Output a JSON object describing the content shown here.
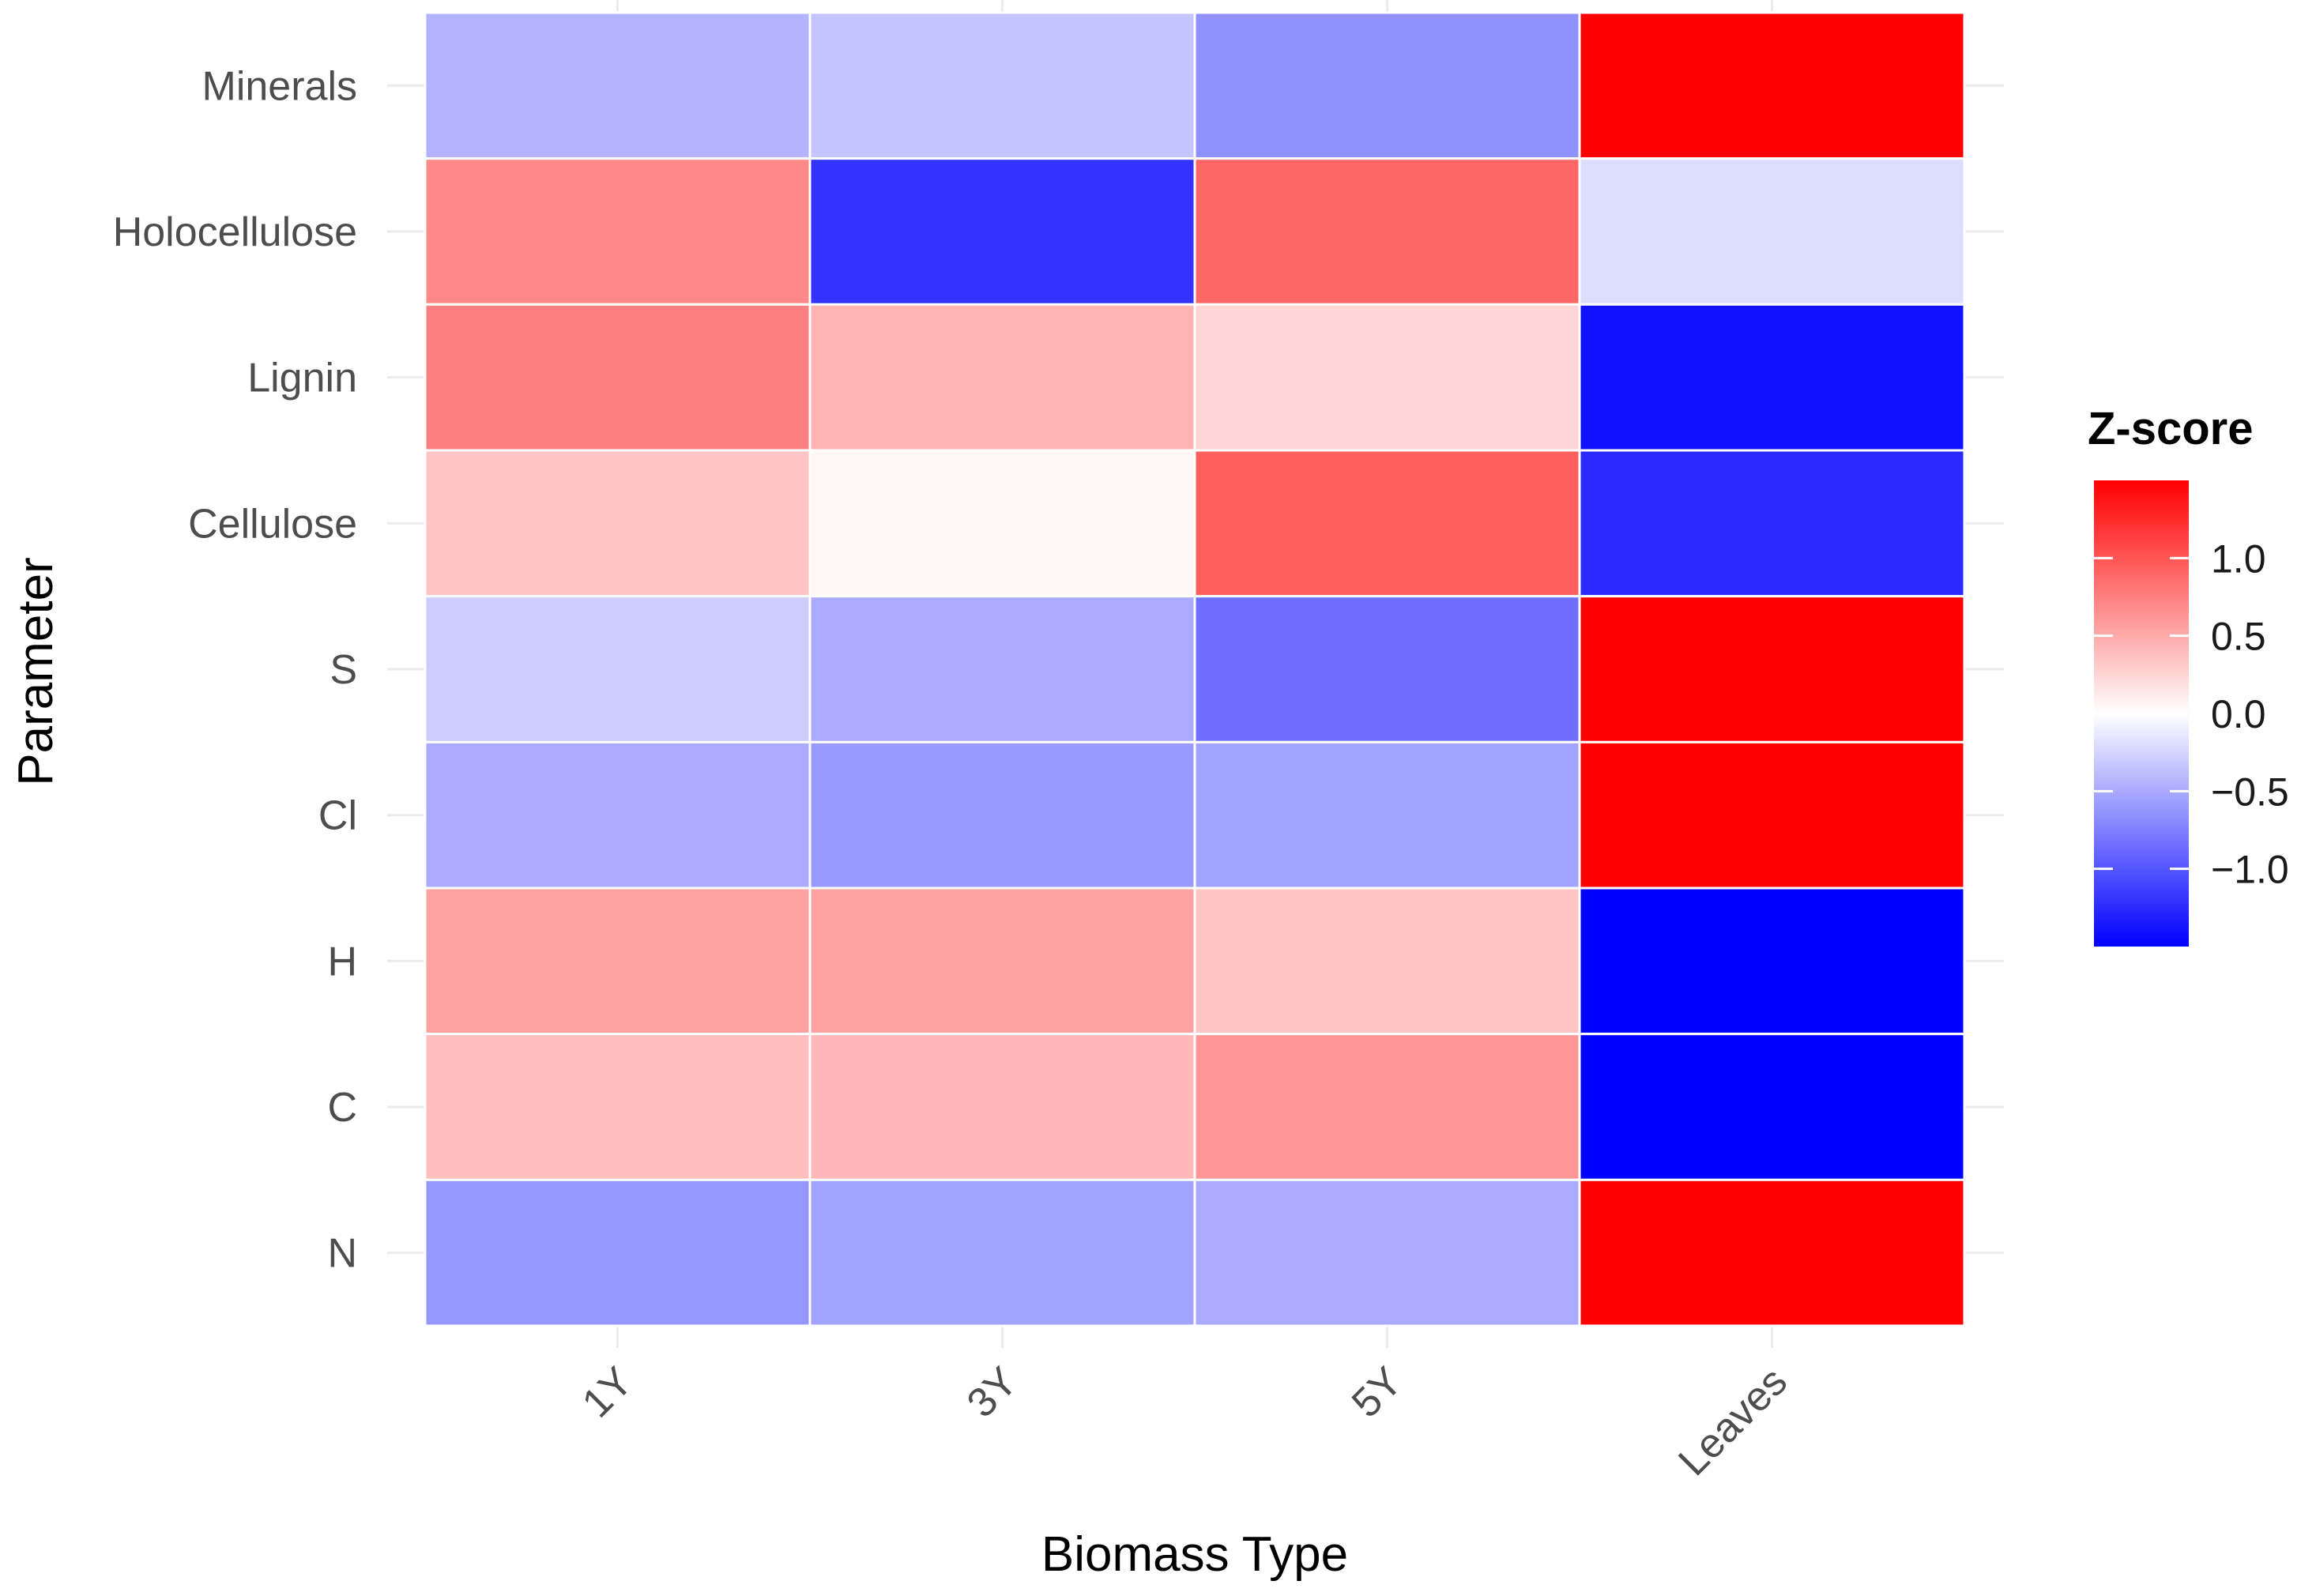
{
  "chart_data": {
    "type": "heatmap",
    "title": "",
    "xlabel": "Biomass Type",
    "ylabel": "Parameter",
    "x_categories": [
      "1Y",
      "3Y",
      "5Y",
      "Leaves"
    ],
    "y_categories": [
      "Minerals",
      "Holocellulose",
      "Lignin",
      "Cellulose",
      "S",
      "Cl",
      "H",
      "C",
      "N"
    ],
    "values": [
      [
        -0.45,
        -0.35,
        -0.65,
        1.5
      ],
      [
        0.7,
        -1.2,
        0.9,
        -0.2
      ],
      [
        0.75,
        0.45,
        0.25,
        -1.4
      ],
      [
        0.35,
        0.05,
        0.95,
        -1.25
      ],
      [
        -0.3,
        -0.5,
        -0.85,
        1.5
      ],
      [
        -0.5,
        -0.6,
        -0.55,
        1.5
      ],
      [
        0.55,
        0.55,
        0.35,
        -1.5
      ],
      [
        0.38,
        0.42,
        0.62,
        -1.5
      ],
      [
        -0.62,
        -0.55,
        -0.5,
        1.5
      ]
    ],
    "legend": {
      "title": "Z-score",
      "position": "right",
      "ticks": [
        1.0,
        0.5,
        0.0,
        -0.5,
        -1.0
      ],
      "tick_labels": [
        "1.0",
        "0.5",
        "0.0",
        "−0.5",
        "−1.0"
      ],
      "range": [
        -1.5,
        1.5
      ]
    },
    "colors": {
      "low": "#0000ff",
      "mid": "#ffffff",
      "high": "#ff0000",
      "tile_border": "#ffffff",
      "grid": "#ebebeb"
    },
    "grid": true
  }
}
